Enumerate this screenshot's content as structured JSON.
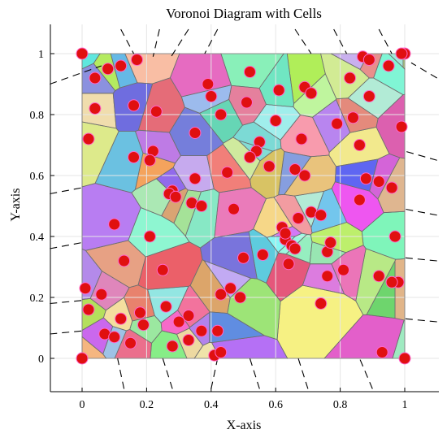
{
  "chart_data": {
    "type": "scatter",
    "subtype": "voronoi-diagram",
    "title": "Voronoi Diagram with Cells",
    "xlabel": "X-axis",
    "ylabel": "Y-axis",
    "xlim": [
      -0.1,
      1.1
    ],
    "ylim": [
      -0.1,
      1.1
    ],
    "xticks": [
      "0",
      "0.2",
      "0.4",
      "0.6",
      "0.8",
      "1"
    ],
    "yticks": [
      "0",
      "0.2",
      "0.4",
      "0.6",
      "0.8",
      "1"
    ],
    "grid": true,
    "clip_box": [
      0,
      1
    ],
    "point_color": "#e01010",
    "edge_color": "#000000",
    "points": [
      [
        0,
        1
      ],
      [
        1,
        1
      ],
      [
        0,
        0
      ],
      [
        1,
        0
      ],
      [
        0.04,
        0.92
      ],
      [
        0.08,
        0.95
      ],
      [
        0.12,
        0.96
      ],
      [
        0.17,
        0.98
      ],
      [
        0.04,
        0.82
      ],
      [
        0.02,
        0.72
      ],
      [
        0.16,
        0.83
      ],
      [
        0.23,
        0.81
      ],
      [
        0.16,
        0.66
      ],
      [
        0.22,
        0.68
      ],
      [
        0.21,
        0.65
      ],
      [
        0.39,
        0.9
      ],
      [
        0.4,
        0.86
      ],
      [
        0.35,
        0.74
      ],
      [
        0.43,
        0.8
      ],
      [
        0.52,
        0.94
      ],
      [
        0.51,
        0.84
      ],
      [
        0.6,
        0.78
      ],
      [
        0.61,
        0.88
      ],
      [
        0.69,
        0.89
      ],
      [
        0.71,
        0.87
      ],
      [
        0.68,
        0.72
      ],
      [
        0.79,
        0.77
      ],
      [
        0.84,
        0.79
      ],
      [
        0.83,
        0.92
      ],
      [
        0.87,
        0.99
      ],
      [
        0.89,
        0.98
      ],
      [
        0.89,
        0.86
      ],
      [
        0.95,
        0.96
      ],
      [
        0.99,
        1.0
      ],
      [
        0.99,
        0.76
      ],
      [
        0.86,
        0.7
      ],
      [
        0.88,
        0.59
      ],
      [
        0.92,
        0.58
      ],
      [
        0.96,
        0.56
      ],
      [
        0.86,
        0.52
      ],
      [
        0.55,
        0.71
      ],
      [
        0.54,
        0.68
      ],
      [
        0.52,
        0.66
      ],
      [
        0.58,
        0.63
      ],
      [
        0.66,
        0.62
      ],
      [
        0.69,
        0.6
      ],
      [
        0.45,
        0.61
      ],
      [
        0.35,
        0.59
      ],
      [
        0.28,
        0.55
      ],
      [
        0.27,
        0.54
      ],
      [
        0.29,
        0.53
      ],
      [
        0.34,
        0.51
      ],
      [
        0.37,
        0.5
      ],
      [
        0.47,
        0.49
      ],
      [
        0.62,
        0.43
      ],
      [
        0.63,
        0.39
      ],
      [
        0.65,
        0.37
      ],
      [
        0.66,
        0.36
      ],
      [
        0.63,
        0.41
      ],
      [
        0.67,
        0.46
      ],
      [
        0.71,
        0.48
      ],
      [
        0.74,
        0.47
      ],
      [
        0.1,
        0.44
      ],
      [
        0.21,
        0.4
      ],
      [
        0.13,
        0.32
      ],
      [
        0.25,
        0.29
      ],
      [
        0.5,
        0.33
      ],
      [
        0.56,
        0.34
      ],
      [
        0.64,
        0.31
      ],
      [
        0.76,
        0.35
      ],
      [
        0.77,
        0.38
      ],
      [
        0.81,
        0.29
      ],
      [
        0.76,
        0.27
      ],
      [
        0.97,
        0.4
      ],
      [
        0.98,
        0.25
      ],
      [
        0.92,
        0.27
      ],
      [
        0.96,
        0.25
      ],
      [
        0.01,
        0.23
      ],
      [
        0.06,
        0.21
      ],
      [
        0.02,
        0.16
      ],
      [
        0.12,
        0.13
      ],
      [
        0.18,
        0.15
      ],
      [
        0.19,
        0.11
      ],
      [
        0.26,
        0.17
      ],
      [
        0.3,
        0.12
      ],
      [
        0.33,
        0.14
      ],
      [
        0.43,
        0.21
      ],
      [
        0.46,
        0.23
      ],
      [
        0.49,
        0.2
      ],
      [
        0.74,
        0.18
      ],
      [
        0.07,
        0.08
      ],
      [
        0.1,
        0.07
      ],
      [
        0.15,
        0.05
      ],
      [
        0.28,
        0.04
      ],
      [
        0.33,
        0.06
      ],
      [
        0.37,
        0.09
      ],
      [
        0.42,
        0.09
      ],
      [
        0.41,
        0.01
      ],
      [
        0.43,
        0.02
      ],
      [
        0.93,
        0.02
      ]
    ]
  }
}
